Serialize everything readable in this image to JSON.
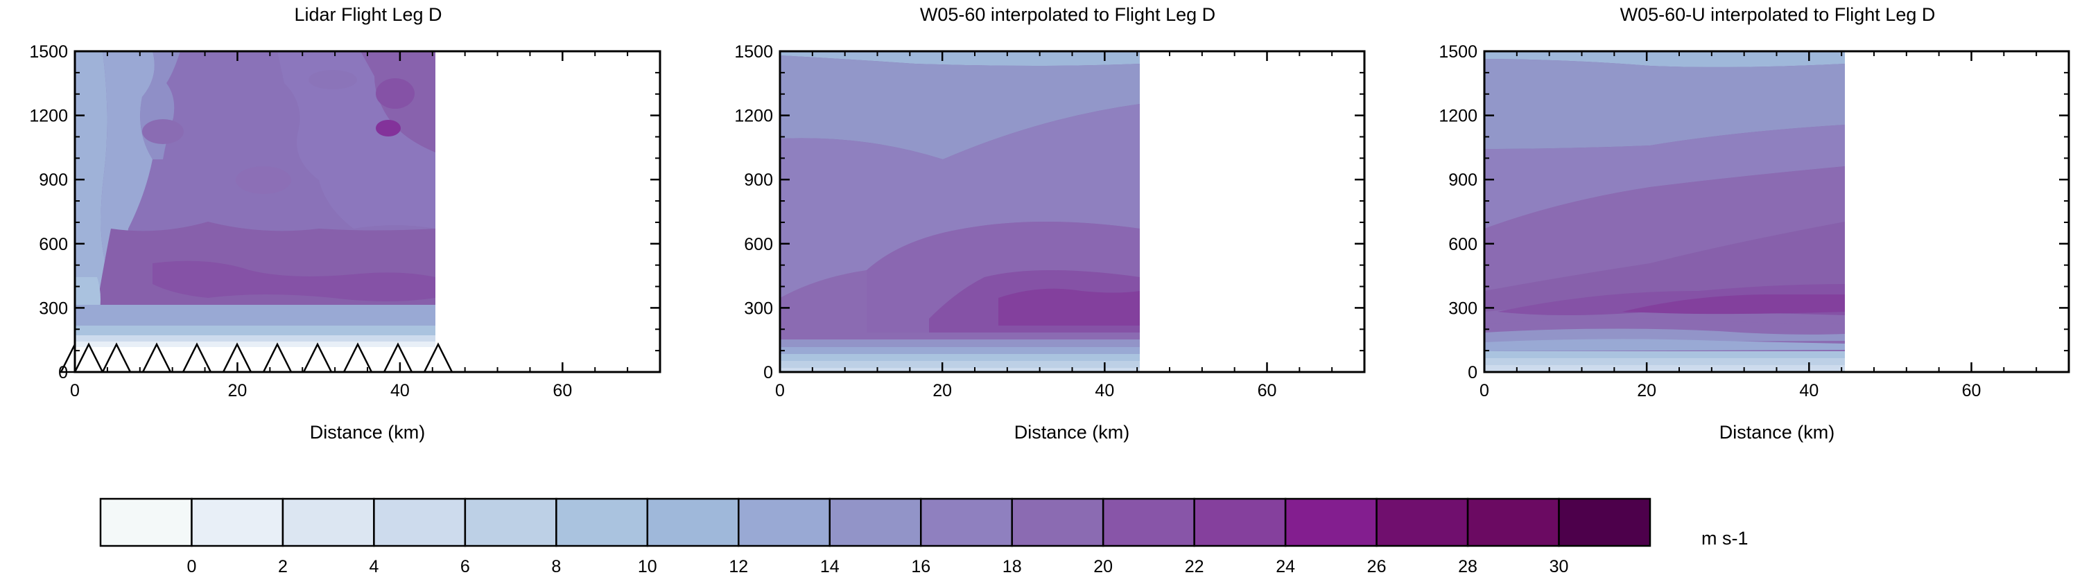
{
  "chart_data": [
    {
      "type": "contour",
      "title": "Lidar Flight Leg D",
      "xlabel": "Distance (km)",
      "ylabel": "",
      "xlim": [
        0,
        72
      ],
      "ylim": [
        0,
        1500
      ],
      "x_ticks": [
        0,
        20,
        40,
        60
      ],
      "y_ticks": [
        0,
        300,
        600,
        900,
        1200,
        1500
      ],
      "data_extent_x": [
        0,
        43.5
      ],
      "terrain_triangles_x": [
        0,
        5,
        10,
        15,
        20,
        25,
        30,
        35,
        40,
        45
      ],
      "terrain_top_y": 140,
      "description_bands": [
        {
          "y_range": [
            0,
            140
          ],
          "value_ms": 10
        },
        {
          "y_range": [
            140,
            200
          ],
          "value_ms": 13
        },
        {
          "y_range": [
            200,
            600
          ],
          "value_ms": 19
        },
        {
          "y_range": [
            600,
            1500
          ],
          "value_ms": 17
        }
      ]
    },
    {
      "type": "contour",
      "title": "W05-60 interpolated to Flight Leg D",
      "xlabel": "Distance (km)",
      "ylabel": "",
      "xlim": [
        0,
        72
      ],
      "ylim": [
        0,
        1500
      ],
      "x_ticks": [
        0,
        20,
        40,
        60
      ],
      "y_ticks": [
        0,
        300,
        600,
        900,
        1200,
        1500
      ],
      "data_extent_x": [
        0,
        43.5
      ]
    },
    {
      "type": "contour",
      "title": "W05-60-U interpolated to Flight Leg D",
      "xlabel": "Distance (km)",
      "ylabel": "",
      "xlim": [
        0,
        72
      ],
      "ylim": [
        0,
        1500
      ],
      "x_ticks": [
        0,
        20,
        40,
        60
      ],
      "y_ticks": [
        0,
        300,
        600,
        900,
        1200,
        1500
      ],
      "data_extent_x": [
        0,
        43.5
      ]
    }
  ],
  "colorbar": {
    "unit_label": "m s-1",
    "levels": [
      0,
      2,
      4,
      6,
      8,
      10,
      12,
      14,
      16,
      18,
      20,
      22,
      24,
      26,
      28,
      30
    ],
    "colors": [
      "#f4f9f9",
      "#e8eff7",
      "#dce6f2",
      "#cddbed",
      "#bdd0e6",
      "#aac3df",
      "#9fb8da",
      "#99a9d4",
      "#9294c8",
      "#8f80bf",
      "#8b6bb2",
      "#8855a8",
      "#85409d",
      "#831e8f",
      "#700f6e",
      "#6b0a62",
      "#4d004b"
    ]
  }
}
